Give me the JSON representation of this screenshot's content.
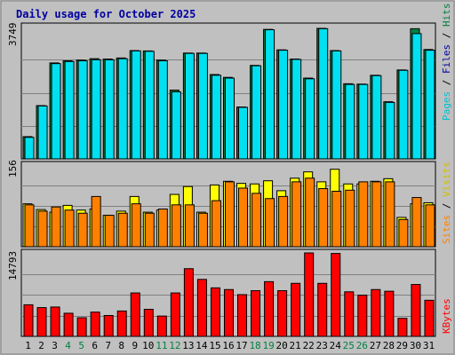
{
  "chart_data": {
    "type": "bar",
    "title": "Daily usage for October 2025",
    "categories": [
      "1",
      "2",
      "3",
      "4",
      "5",
      "6",
      "7",
      "8",
      "9",
      "10",
      "11",
      "12",
      "13",
      "14",
      "15",
      "16",
      "17",
      "18",
      "19",
      "20",
      "21",
      "22",
      "23",
      "24",
      "25",
      "26",
      "27",
      "28",
      "29",
      "30",
      "31"
    ],
    "weekend_days": [
      "4",
      "5",
      "11",
      "12",
      "18",
      "19",
      "25",
      "26"
    ],
    "colors": {
      "hits": "#008040",
      "files": "#00e0f0",
      "pages": "#00c0d0",
      "visits": "#ffff00",
      "sites": "#ff8000",
      "kbytes": "#ff0000",
      "title": "#0000a0",
      "weekday": "#000000",
      "weekend": "#008040",
      "frame": "#c0c0c0"
    },
    "panels": [
      {
        "max_label": "3749",
        "ylim": [
          0,
          3749
        ],
        "legend": [
          {
            "name": "Pages",
            "color": "#00c0d0"
          },
          {
            "name": "Files",
            "color": "#0000a0"
          },
          {
            "name": "Hits",
            "color": "#008040"
          }
        ],
        "series": [
          {
            "name": "Hits",
            "values": [
              630,
              1510,
              2720,
              2780,
              2800,
              2840,
              2830,
              2860,
              3070,
              3060,
              2800,
              1950,
              3000,
              3000,
              2390,
              2310,
              1470,
              2650,
              3670,
              3090,
              2830,
              2290,
              3700,
              3070,
              2130,
              2120,
              2370,
              1620,
              2520,
              3690,
              3100
            ]
          },
          {
            "name": "Files",
            "values": [
              610,
              1500,
              2700,
              2760,
              2780,
              2810,
              2810,
              2840,
              3060,
              3050,
              2780,
              1900,
              2990,
              2990,
              2370,
              2290,
              1460,
              2640,
              3660,
              3080,
              2820,
              2270,
              3690,
              3060,
              2110,
              2110,
              2360,
              1600,
              2510,
              3550,
              3080
            ]
          }
        ]
      },
      {
        "max_label": "156",
        "ylim": [
          0,
          156
        ],
        "legend": [
          {
            "name": "Sites",
            "color": "#ff8000"
          },
          {
            "name": "Visits",
            "color": "#ffff00"
          }
        ],
        "series": [
          {
            "name": "Visits",
            "values": [
              82,
              71,
              66,
              79,
              70,
              72,
              60,
              68,
              96,
              66,
              70,
              100,
              115,
              66,
              118,
              125,
              121,
              120,
              126,
              107,
              131,
              143,
              124,
              148,
              120,
              120,
              125,
              130,
              56,
              82,
              84
            ]
          },
          {
            "name": "Sites",
            "values": [
              80,
              68,
              76,
              70,
              64,
              96,
              60,
              64,
              82,
              64,
              72,
              80,
              80,
              64,
              88,
              124,
              112,
              102,
              92,
              96,
              124,
              131,
              111,
              106,
              108,
              124,
              124,
              124,
              52,
              94,
              80
            ]
          }
        ]
      },
      {
        "max_label": "14793",
        "ylim": [
          0,
          14793
        ],
        "legend": [
          {
            "name": "KBytes",
            "color": "#ff0000"
          }
        ],
        "series": [
          {
            "name": "KBytes",
            "values": [
              5600,
              5100,
              5200,
              4100,
              3300,
              4300,
              3700,
              4500,
              7700,
              4800,
              3600,
              7700,
              12000,
              10100,
              8600,
              8300,
              7400,
              8100,
              9700,
              8100,
              9400,
              14793,
              9400,
              14700,
              7900,
              7300,
              8300,
              8000,
              3200,
              9200,
              6400
            ]
          }
        ]
      }
    ]
  }
}
